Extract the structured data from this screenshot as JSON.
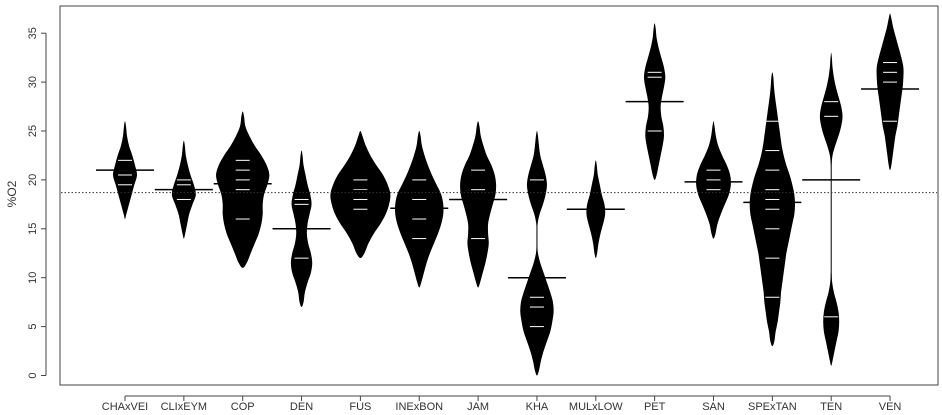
{
  "chart_data": {
    "type": "beanplot",
    "ylabel": "%O2",
    "xlabel": "",
    "title": "",
    "ylim": [
      -1,
      37
    ],
    "yticks": [
      0,
      5,
      10,
      15,
      20,
      25,
      30,
      35
    ],
    "overall_mean": 18.7,
    "grid": false,
    "colors": {
      "bean": "#000000",
      "lines": "#ffffff",
      "axis": "#444444"
    },
    "categories": [
      "CHAxVEI",
      "CLIxEYM",
      "COP",
      "DEN",
      "FUS",
      "INExBON",
      "JAM",
      "KHA",
      "MULxLOW",
      "PET",
      "SAN",
      "SPExTAN",
      "TEN",
      "VEN"
    ],
    "beans": [
      {
        "name": "CHAxVEI",
        "mean": 21.0,
        "min": 16.5,
        "max": 25.5,
        "density": [
          [
            16.5,
            0.2
          ],
          [
            17.5,
            0.6
          ],
          [
            18.5,
            1.0
          ],
          [
            19.5,
            1.4
          ],
          [
            20.5,
            1.8
          ],
          [
            21.5,
            1.5
          ],
          [
            22.5,
            1.1
          ],
          [
            23.5,
            0.6
          ],
          [
            24.5,
            0.3
          ],
          [
            25.5,
            0.15
          ]
        ],
        "points": [
          19.5,
          20.5,
          21.0,
          22.0
        ]
      },
      {
        "name": "CLIxEYM",
        "mean": 19.0,
        "min": 14.5,
        "max": 23.5,
        "density": [
          [
            14.5,
            0.2
          ],
          [
            15.5,
            0.5
          ],
          [
            16.5,
            0.8
          ],
          [
            17.5,
            1.3
          ],
          [
            18.5,
            1.8
          ],
          [
            19.5,
            1.5
          ],
          [
            20.5,
            1.0
          ],
          [
            21.5,
            0.6
          ],
          [
            22.5,
            0.3
          ],
          [
            23.5,
            0.15
          ]
        ],
        "points": [
          18.0,
          19.5,
          20.0
        ]
      },
      {
        "name": "COP",
        "mean": 19.6,
        "min": 11.5,
        "max": 26.5,
        "density": [
          [
            11.5,
            0.6
          ],
          [
            12.5,
            1.2
          ],
          [
            13.5,
            1.8
          ],
          [
            14.5,
            2.4
          ],
          [
            15.5,
            2.8
          ],
          [
            16.5,
            3.0
          ],
          [
            17.5,
            3.0
          ],
          [
            18.5,
            3.2
          ],
          [
            19.5,
            3.7
          ],
          [
            20.5,
            4.0
          ],
          [
            21.5,
            3.6
          ],
          [
            22.5,
            2.8
          ],
          [
            23.5,
            1.8
          ],
          [
            24.5,
            1.0
          ],
          [
            25.5,
            0.4
          ],
          [
            26.5,
            0.2
          ]
        ],
        "points": [
          16.0,
          19.0,
          20.0,
          21.0,
          22.0
        ]
      },
      {
        "name": "DEN",
        "mean": 15.0,
        "min": 7.5,
        "max": 22.5,
        "density": [
          [
            7.5,
            0.3
          ],
          [
            8.5,
            0.5
          ],
          [
            9.5,
            0.9
          ],
          [
            10.5,
            1.4
          ],
          [
            11.5,
            1.6
          ],
          [
            12.5,
            1.4
          ],
          [
            13.5,
            1.0
          ],
          [
            14.5,
            0.8
          ],
          [
            15.5,
            0.9
          ],
          [
            16.5,
            1.2
          ],
          [
            17.5,
            1.5
          ],
          [
            18.5,
            1.3
          ],
          [
            19.5,
            0.9
          ],
          [
            20.5,
            0.6
          ],
          [
            21.5,
            0.3
          ],
          [
            22.5,
            0.15
          ]
        ],
        "points": [
          12.0,
          17.5,
          18.0
        ]
      },
      {
        "name": "FUS",
        "mean": 18.9,
        "min": 12.5,
        "max": 24.5,
        "density": [
          [
            12.5,
            0.6
          ],
          [
            13.5,
            1.2
          ],
          [
            14.5,
            2.0
          ],
          [
            15.5,
            3.0
          ],
          [
            16.5,
            3.8
          ],
          [
            17.5,
            4.3
          ],
          [
            18.5,
            4.5
          ],
          [
            19.5,
            4.1
          ],
          [
            20.5,
            3.4
          ],
          [
            21.5,
            2.4
          ],
          [
            22.5,
            1.5
          ],
          [
            23.5,
            0.8
          ],
          [
            24.5,
            0.3
          ]
        ],
        "points": [
          17.0,
          18.0,
          19.0,
          20.0
        ]
      },
      {
        "name": "INExBON",
        "mean": 17.1,
        "min": 9.5,
        "max": 24.5,
        "density": [
          [
            9.5,
            0.3
          ],
          [
            10.5,
            0.7
          ],
          [
            11.5,
            1.1
          ],
          [
            12.5,
            1.6
          ],
          [
            13.5,
            2.2
          ],
          [
            14.5,
            2.8
          ],
          [
            15.5,
            3.3
          ],
          [
            16.5,
            3.6
          ],
          [
            17.5,
            3.6
          ],
          [
            18.5,
            3.3
          ],
          [
            19.5,
            2.6
          ],
          [
            20.5,
            1.9
          ],
          [
            21.5,
            1.3
          ],
          [
            22.5,
            0.8
          ],
          [
            23.5,
            0.4
          ],
          [
            24.5,
            0.2
          ]
        ],
        "points": [
          14.0,
          16.0,
          18.0,
          20.0
        ]
      },
      {
        "name": "JAM",
        "mean": 18.0,
        "min": 9.5,
        "max": 25.5,
        "density": [
          [
            9.5,
            0.3
          ],
          [
            10.5,
            0.7
          ],
          [
            11.5,
            1.1
          ],
          [
            12.5,
            1.4
          ],
          [
            13.5,
            1.6
          ],
          [
            14.5,
            1.5
          ],
          [
            15.5,
            1.5
          ],
          [
            16.5,
            1.8
          ],
          [
            17.5,
            2.2
          ],
          [
            18.5,
            2.6
          ],
          [
            19.5,
            2.7
          ],
          [
            20.5,
            2.5
          ],
          [
            21.5,
            2.0
          ],
          [
            22.5,
            1.3
          ],
          [
            23.5,
            0.8
          ],
          [
            24.5,
            0.4
          ],
          [
            25.5,
            0.2
          ]
        ],
        "points": [
          14.0,
          18.0,
          19.0,
          21.0
        ]
      },
      {
        "name": "KHA",
        "mean": 10.0,
        "min": 0.5,
        "max": 24.5,
        "density": [
          [
            0.5,
            0.3
          ],
          [
            1.5,
            0.6
          ],
          [
            2.5,
            1.0
          ],
          [
            3.5,
            1.5
          ],
          [
            4.5,
            2.0
          ],
          [
            5.5,
            2.3
          ],
          [
            6.5,
            2.5
          ],
          [
            7.5,
            2.4
          ],
          [
            8.5,
            2.0
          ],
          [
            9.5,
            1.5
          ],
          [
            10.5,
            1.0
          ],
          [
            11.5,
            0.5
          ],
          [
            12.5,
            0.15
          ],
          [
            13.5,
            0.05
          ],
          [
            14.5,
            0.05
          ],
          [
            15.5,
            0.1
          ],
          [
            16.5,
            0.4
          ],
          [
            17.5,
            0.9
          ],
          [
            18.5,
            1.3
          ],
          [
            19.5,
            1.5
          ],
          [
            20.5,
            1.3
          ],
          [
            21.5,
            0.9
          ],
          [
            22.5,
            0.5
          ],
          [
            23.5,
            0.3
          ],
          [
            24.5,
            0.15
          ]
        ],
        "points": [
          5.0,
          7.0,
          8.0,
          20.0
        ]
      },
      {
        "name": "MULxLOW",
        "mean": 17.0,
        "min": 12.5,
        "max": 21.5,
        "density": [
          [
            12.5,
            0.2
          ],
          [
            13.5,
            0.4
          ],
          [
            14.5,
            0.7
          ],
          [
            15.5,
            1.1
          ],
          [
            16.5,
            1.4
          ],
          [
            17.5,
            1.3
          ],
          [
            18.5,
            0.9
          ],
          [
            19.5,
            0.6
          ],
          [
            20.5,
            0.3
          ],
          [
            21.5,
            0.15
          ]
        ],
        "points": [
          17.0
        ]
      },
      {
        "name": "PET",
        "mean": 28.0,
        "min": 20.5,
        "max": 35.5,
        "density": [
          [
            20.5,
            0.3
          ],
          [
            21.5,
            0.6
          ],
          [
            22.5,
            0.9
          ],
          [
            23.5,
            1.2
          ],
          [
            24.5,
            1.4
          ],
          [
            25.5,
            1.3
          ],
          [
            26.5,
            1.0
          ],
          [
            27.5,
            0.9
          ],
          [
            28.5,
            1.1
          ],
          [
            29.5,
            1.4
          ],
          [
            30.5,
            1.6
          ],
          [
            31.5,
            1.4
          ],
          [
            32.5,
            1.0
          ],
          [
            33.5,
            0.6
          ],
          [
            34.5,
            0.3
          ],
          [
            35.5,
            0.15
          ]
        ],
        "points": [
          25.0,
          30.5,
          31.0
        ]
      },
      {
        "name": "SAN",
        "mean": 19.8,
        "min": 14.5,
        "max": 25.5,
        "density": [
          [
            14.5,
            0.3
          ],
          [
            15.5,
            0.6
          ],
          [
            16.5,
            1.1
          ],
          [
            17.5,
            1.7
          ],
          [
            18.5,
            2.3
          ],
          [
            19.5,
            2.6
          ],
          [
            20.5,
            2.5
          ],
          [
            21.5,
            2.0
          ],
          [
            22.5,
            1.3
          ],
          [
            23.5,
            0.7
          ],
          [
            24.5,
            0.35
          ],
          [
            25.5,
            0.15
          ]
        ],
        "points": [
          19.0,
          20.0,
          21.0
        ]
      },
      {
        "name": "SPExTAN",
        "mean": 17.7,
        "min": 3.5,
        "max": 30.5,
        "density": [
          [
            3.5,
            0.3
          ],
          [
            4.5,
            0.5
          ],
          [
            5.5,
            0.8
          ],
          [
            6.5,
            1.0
          ],
          [
            7.5,
            1.2
          ],
          [
            8.5,
            1.3
          ],
          [
            9.5,
            1.5
          ],
          [
            10.5,
            1.7
          ],
          [
            11.5,
            1.9
          ],
          [
            12.5,
            2.1
          ],
          [
            13.5,
            2.4
          ],
          [
            14.5,
            2.7
          ],
          [
            15.5,
            3.0
          ],
          [
            16.5,
            3.3
          ],
          [
            17.5,
            3.4
          ],
          [
            18.5,
            3.3
          ],
          [
            19.5,
            3.0
          ],
          [
            20.5,
            2.6
          ],
          [
            21.5,
            2.1
          ],
          [
            22.5,
            1.7
          ],
          [
            23.5,
            1.4
          ],
          [
            24.5,
            1.2
          ],
          [
            25.5,
            1.0
          ],
          [
            26.5,
            0.8
          ],
          [
            27.5,
            0.6
          ],
          [
            28.5,
            0.4
          ],
          [
            29.5,
            0.25
          ],
          [
            30.5,
            0.15
          ]
        ],
        "points": [
          8.0,
          12.0,
          15.0,
          17.0,
          18.0,
          19.0,
          21.0,
          23.0,
          26.0
        ]
      },
      {
        "name": "TEN",
        "mean": 20.0,
        "min": 1.5,
        "max": 32.5,
        "density": [
          [
            1.5,
            0.2
          ],
          [
            2.5,
            0.5
          ],
          [
            3.5,
            0.8
          ],
          [
            4.5,
            1.1
          ],
          [
            5.5,
            1.2
          ],
          [
            6.5,
            1.1
          ],
          [
            7.5,
            0.8
          ],
          [
            8.5,
            0.4
          ],
          [
            9.5,
            0.15
          ],
          [
            10.5,
            0.05
          ],
          [
            21.5,
            0.05
          ],
          [
            22.5,
            0.2
          ],
          [
            23.5,
            0.6
          ],
          [
            24.5,
            1.1
          ],
          [
            25.5,
            1.5
          ],
          [
            26.5,
            1.7
          ],
          [
            27.5,
            1.5
          ],
          [
            28.5,
            1.1
          ],
          [
            29.5,
            0.7
          ],
          [
            30.5,
            0.4
          ],
          [
            31.5,
            0.2
          ],
          [
            32.5,
            0.1
          ]
        ],
        "points": [
          6.0,
          26.5,
          28.0
        ]
      },
      {
        "name": "VEN",
        "mean": 29.3,
        "min": 21.5,
        "max": 36.5,
        "density": [
          [
            21.5,
            0.2
          ],
          [
            22.5,
            0.4
          ],
          [
            23.5,
            0.6
          ],
          [
            24.5,
            0.8
          ],
          [
            25.5,
            1.1
          ],
          [
            26.5,
            1.3
          ],
          [
            27.5,
            1.5
          ],
          [
            28.5,
            1.7
          ],
          [
            29.5,
            1.9
          ],
          [
            30.5,
            2.0
          ],
          [
            31.5,
            2.0
          ],
          [
            32.5,
            1.7
          ],
          [
            33.5,
            1.3
          ],
          [
            34.5,
            0.9
          ],
          [
            35.5,
            0.5
          ],
          [
            36.5,
            0.2
          ]
        ],
        "points": [
          26.0,
          30.0,
          31.0,
          32.0
        ]
      }
    ]
  }
}
